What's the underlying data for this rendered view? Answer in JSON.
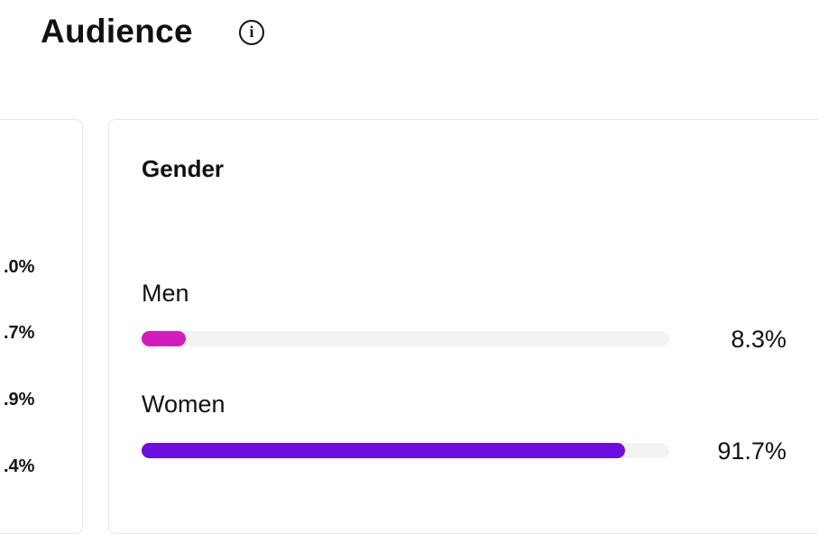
{
  "header": {
    "title": "Audience"
  },
  "left_card": {
    "values": [
      ".0%",
      ".7%",
      ".9%",
      ".4%"
    ]
  },
  "gender_card": {
    "title": "Gender",
    "xlim": [
      0,
      100
    ],
    "items": [
      {
        "name": "Men",
        "value": 8.3,
        "value_label": "8.3%",
        "color": "#d41bbd"
      },
      {
        "name": "Women",
        "value": 91.7,
        "value_label": "91.7%",
        "color": "#6a0fe0"
      }
    ]
  }
}
